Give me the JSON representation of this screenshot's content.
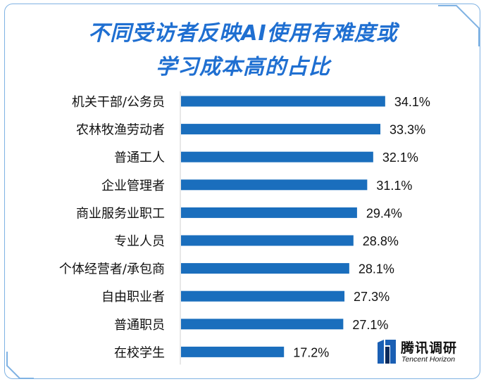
{
  "title_line1": "不同受访者反映AI使用有难度或",
  "title_line2": "学习成本高的占比",
  "brand": {
    "name_zh": "腾讯调研",
    "name_en": "Tencent Horizon"
  },
  "colors": {
    "bar": "#1a6ebd",
    "title": "#1f6fd1",
    "frame": "#7fb2e3",
    "axis": "#cfcfcf"
  },
  "chart_data": {
    "type": "bar",
    "orientation": "horizontal",
    "categories": [
      "机关干部/公务员",
      "农林牧渔劳动者",
      "普通工人",
      "企业管理者",
      "商业服务业职工",
      "专业人员",
      "个体经营者/承包商",
      "自由职业者",
      "普通职员",
      "在校学生"
    ],
    "values": [
      34.1,
      33.3,
      32.1,
      31.1,
      29.4,
      28.8,
      28.1,
      27.3,
      27.1,
      17.2
    ],
    "labels": [
      "34.1%",
      "33.3%",
      "32.1%",
      "31.1%",
      "29.4%",
      "28.8%",
      "28.1%",
      "27.3%",
      "27.1%",
      "17.2%"
    ],
    "xlim": [
      0,
      40
    ],
    "grid": false,
    "legend": "none"
  }
}
